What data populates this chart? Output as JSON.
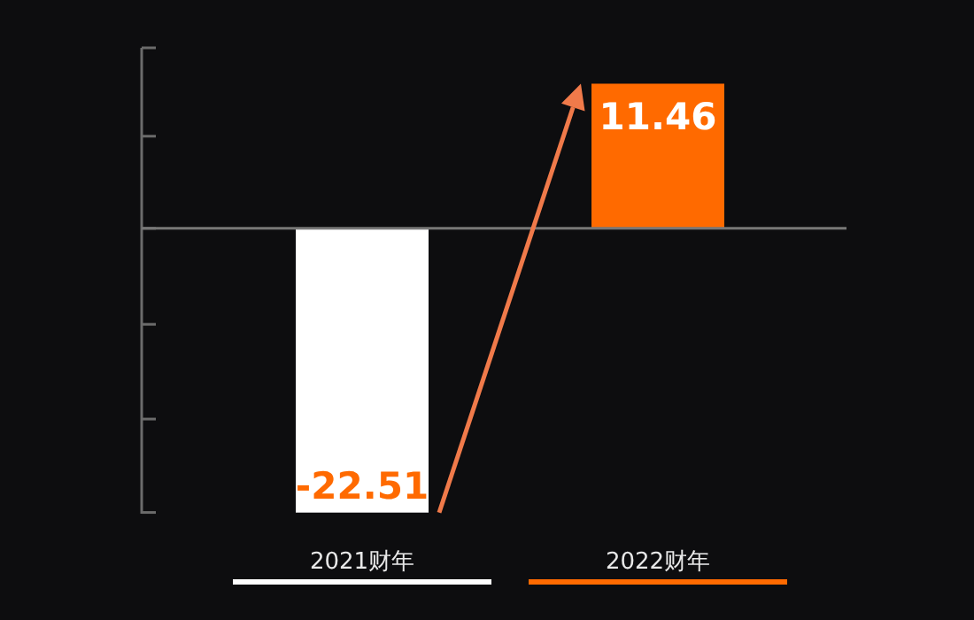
{
  "chart_data": {
    "type": "bar",
    "categories": [
      "2021财年",
      "2022财年"
    ],
    "values": [
      -22.51,
      11.46
    ],
    "colors": [
      "#ffffff",
      "#ff6a00"
    ],
    "data_labels": true,
    "ylim": [
      -22.6,
      14.3
    ],
    "yticks": [
      {
        "value": 14.3,
        "label": null
      },
      {
        "value": 7.3,
        "label": null
      },
      {
        "value": 0,
        "label": null
      },
      {
        "value": -7.6,
        "label": null
      },
      {
        "value": -15.1,
        "label": null
      },
      {
        "value": -22.5,
        "label": null
      }
    ],
    "tick_labels": "x"
  }
}
